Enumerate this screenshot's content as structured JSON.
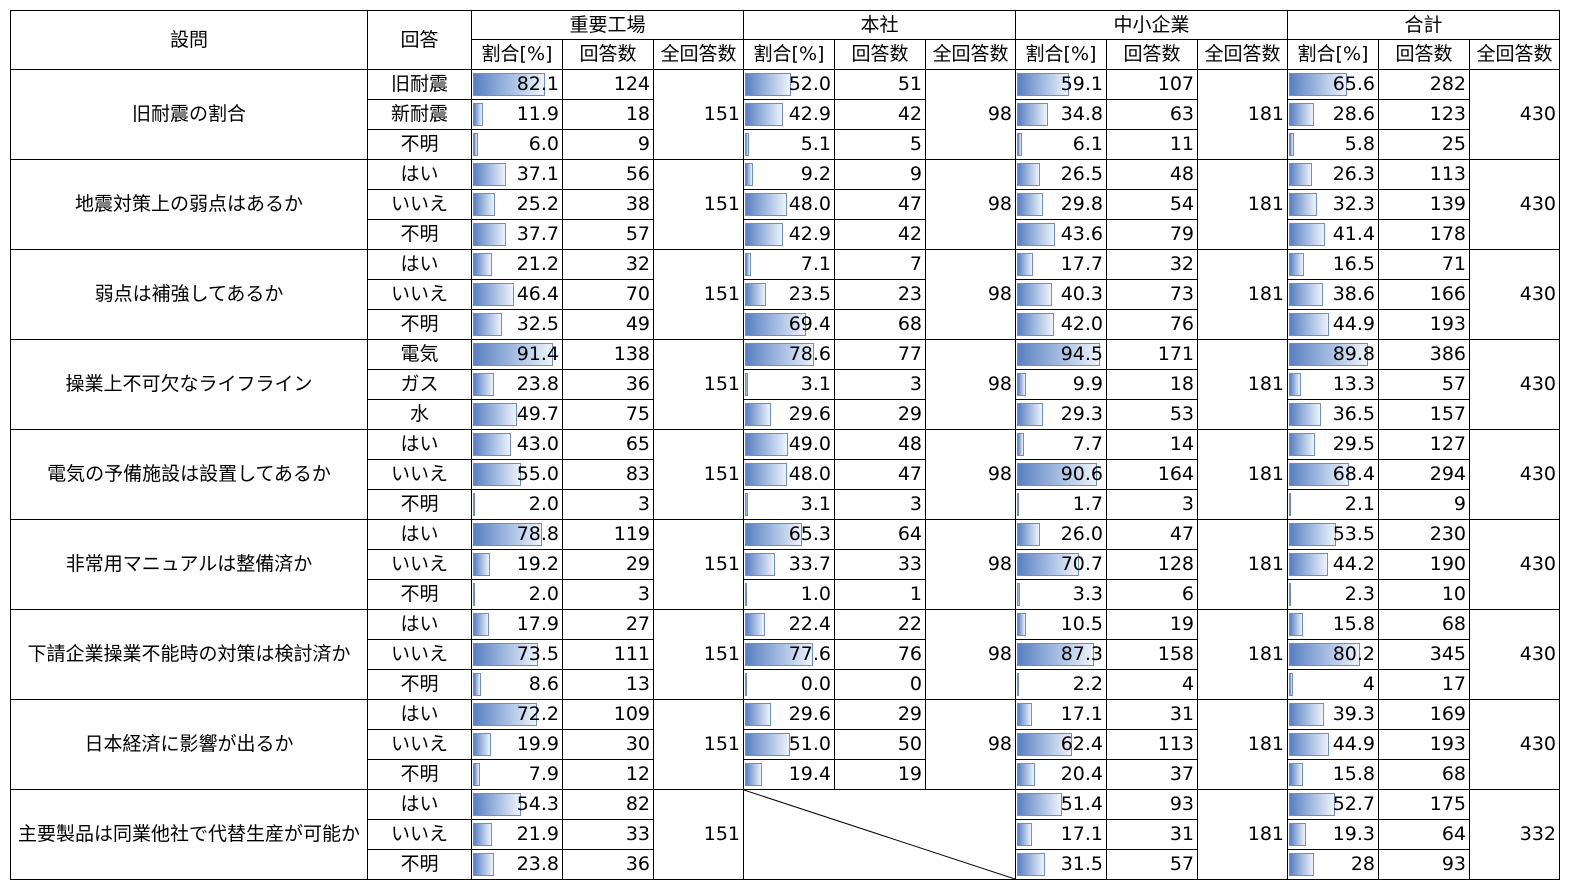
{
  "headers": {
    "question": "設問",
    "answer": "回答",
    "groups": [
      "重要工場",
      "本社",
      "中小企業",
      "合計"
    ],
    "sub": [
      "割合[%]",
      "回答数",
      "全回答数"
    ]
  },
  "rows": [
    {
      "q": "旧耐震の割合",
      "answers": [
        "旧耐震",
        "新耐震",
        "不明"
      ],
      "groups": [
        {
          "pct": [
            "82.1",
            "11.9",
            "6.0"
          ],
          "cnt": [
            "124",
            "18",
            "9"
          ],
          "total": "151"
        },
        {
          "pct": [
            "52.0",
            "42.9",
            "5.1"
          ],
          "cnt": [
            "51",
            "42",
            "5"
          ],
          "total": "98"
        },
        {
          "pct": [
            "59.1",
            "34.8",
            "6.1"
          ],
          "cnt": [
            "107",
            "63",
            "11"
          ],
          "total": "181"
        },
        {
          "pct": [
            "65.6",
            "28.6",
            "5.8"
          ],
          "cnt": [
            "282",
            "123",
            "25"
          ],
          "total": "430"
        }
      ]
    },
    {
      "q": "地震対策上の弱点はあるか",
      "answers": [
        "はい",
        "いいえ",
        "不明"
      ],
      "groups": [
        {
          "pct": [
            "37.1",
            "25.2",
            "37.7"
          ],
          "cnt": [
            "56",
            "38",
            "57"
          ],
          "total": "151"
        },
        {
          "pct": [
            "9.2",
            "48.0",
            "42.9"
          ],
          "cnt": [
            "9",
            "47",
            "42"
          ],
          "total": "98"
        },
        {
          "pct": [
            "26.5",
            "29.8",
            "43.6"
          ],
          "cnt": [
            "48",
            "54",
            "79"
          ],
          "total": "181"
        },
        {
          "pct": [
            "26.3",
            "32.3",
            "41.4"
          ],
          "cnt": [
            "113",
            "139",
            "178"
          ],
          "total": "430"
        }
      ]
    },
    {
      "q": "弱点は補強してあるか",
      "answers": [
        "はい",
        "いいえ",
        "不明"
      ],
      "groups": [
        {
          "pct": [
            "21.2",
            "46.4",
            "32.5"
          ],
          "cnt": [
            "32",
            "70",
            "49"
          ],
          "total": "151"
        },
        {
          "pct": [
            "7.1",
            "23.5",
            "69.4"
          ],
          "cnt": [
            "7",
            "23",
            "68"
          ],
          "total": "98"
        },
        {
          "pct": [
            "17.7",
            "40.3",
            "42.0"
          ],
          "cnt": [
            "32",
            "73",
            "76"
          ],
          "total": "181"
        },
        {
          "pct": [
            "16.5",
            "38.6",
            "44.9"
          ],
          "cnt": [
            "71",
            "166",
            "193"
          ],
          "total": "430"
        }
      ]
    },
    {
      "q": "操業上不可欠なライフライン",
      "answers": [
        "電気",
        "ガス",
        "水"
      ],
      "groups": [
        {
          "pct": [
            "91.4",
            "23.8",
            "49.7"
          ],
          "cnt": [
            "138",
            "36",
            "75"
          ],
          "total": "151"
        },
        {
          "pct": [
            "78.6",
            "3.1",
            "29.6"
          ],
          "cnt": [
            "77",
            "3",
            "29"
          ],
          "total": "98"
        },
        {
          "pct": [
            "94.5",
            "9.9",
            "29.3"
          ],
          "cnt": [
            "171",
            "18",
            "53"
          ],
          "total": "181"
        },
        {
          "pct": [
            "89.8",
            "13.3",
            "36.5"
          ],
          "cnt": [
            "386",
            "57",
            "157"
          ],
          "total": "430"
        }
      ]
    },
    {
      "q": "電気の予備施設は設置してあるか",
      "answers": [
        "はい",
        "いいえ",
        "不明"
      ],
      "groups": [
        {
          "pct": [
            "43.0",
            "55.0",
            "2.0"
          ],
          "cnt": [
            "65",
            "83",
            "3"
          ],
          "total": "151"
        },
        {
          "pct": [
            "49.0",
            "48.0",
            "3.1"
          ],
          "cnt": [
            "48",
            "47",
            "3"
          ],
          "total": "98"
        },
        {
          "pct": [
            "7.7",
            "90.6",
            "1.7"
          ],
          "cnt": [
            "14",
            "164",
            "3"
          ],
          "total": "181"
        },
        {
          "pct": [
            "29.5",
            "68.4",
            "2.1"
          ],
          "cnt": [
            "127",
            "294",
            "9"
          ],
          "total": "430"
        }
      ]
    },
    {
      "q": "非常用マニュアルは整備済か",
      "answers": [
        "はい",
        "いいえ",
        "不明"
      ],
      "groups": [
        {
          "pct": [
            "78.8",
            "19.2",
            "2.0"
          ],
          "cnt": [
            "119",
            "29",
            "3"
          ],
          "total": "151"
        },
        {
          "pct": [
            "65.3",
            "33.7",
            "1.0"
          ],
          "cnt": [
            "64",
            "33",
            "1"
          ],
          "total": "98"
        },
        {
          "pct": [
            "26.0",
            "70.7",
            "3.3"
          ],
          "cnt": [
            "47",
            "128",
            "6"
          ],
          "total": "181"
        },
        {
          "pct": [
            "53.5",
            "44.2",
            "2.3"
          ],
          "cnt": [
            "230",
            "190",
            "10"
          ],
          "total": "430"
        }
      ]
    },
    {
      "q": "下請企業操業不能時の対策は検討済か",
      "answers": [
        "はい",
        "いいえ",
        "不明"
      ],
      "groups": [
        {
          "pct": [
            "17.9",
            "73.5",
            "8.6"
          ],
          "cnt": [
            "27",
            "111",
            "13"
          ],
          "total": "151"
        },
        {
          "pct": [
            "22.4",
            "77.6",
            "0.0"
          ],
          "cnt": [
            "22",
            "76",
            "0"
          ],
          "total": "98"
        },
        {
          "pct": [
            "10.5",
            "87.3",
            "2.2"
          ],
          "cnt": [
            "19",
            "158",
            "4"
          ],
          "total": "181"
        },
        {
          "pct": [
            "15.8",
            "80.2",
            "4"
          ],
          "cnt": [
            "68",
            "345",
            "17"
          ],
          "total": "430"
        }
      ]
    },
    {
      "q": "日本経済に影響が出るか",
      "answers": [
        "はい",
        "いいえ",
        "不明"
      ],
      "groups": [
        {
          "pct": [
            "72.2",
            "19.9",
            "7.9"
          ],
          "cnt": [
            "109",
            "30",
            "12"
          ],
          "total": "151"
        },
        {
          "pct": [
            "29.6",
            "51.0",
            "19.4"
          ],
          "cnt": [
            "29",
            "50",
            "19"
          ],
          "total": "98"
        },
        {
          "pct": [
            "17.1",
            "62.4",
            "20.4"
          ],
          "cnt": [
            "31",
            "113",
            "37"
          ],
          "total": "181"
        },
        {
          "pct": [
            "39.3",
            "44.9",
            "15.8"
          ],
          "cnt": [
            "169",
            "193",
            "68"
          ],
          "total": "430"
        }
      ]
    },
    {
      "q": "主要製品は同業他社で代替生産が可能か",
      "answers": [
        "はい",
        "いいえ",
        "不明"
      ],
      "groups": [
        {
          "pct": [
            "54.3",
            "21.9",
            "23.8"
          ],
          "cnt": [
            "82",
            "33",
            "36"
          ],
          "total": "151"
        },
        null,
        {
          "pct": [
            "51.4",
            "17.1",
            "31.5"
          ],
          "cnt": [
            "93",
            "31",
            "57"
          ],
          "total": "181"
        },
        {
          "pct": [
            "52.7",
            "19.3",
            "28"
          ],
          "cnt": [
            "175",
            "64",
            "93"
          ],
          "total": "332"
        }
      ]
    }
  ]
}
